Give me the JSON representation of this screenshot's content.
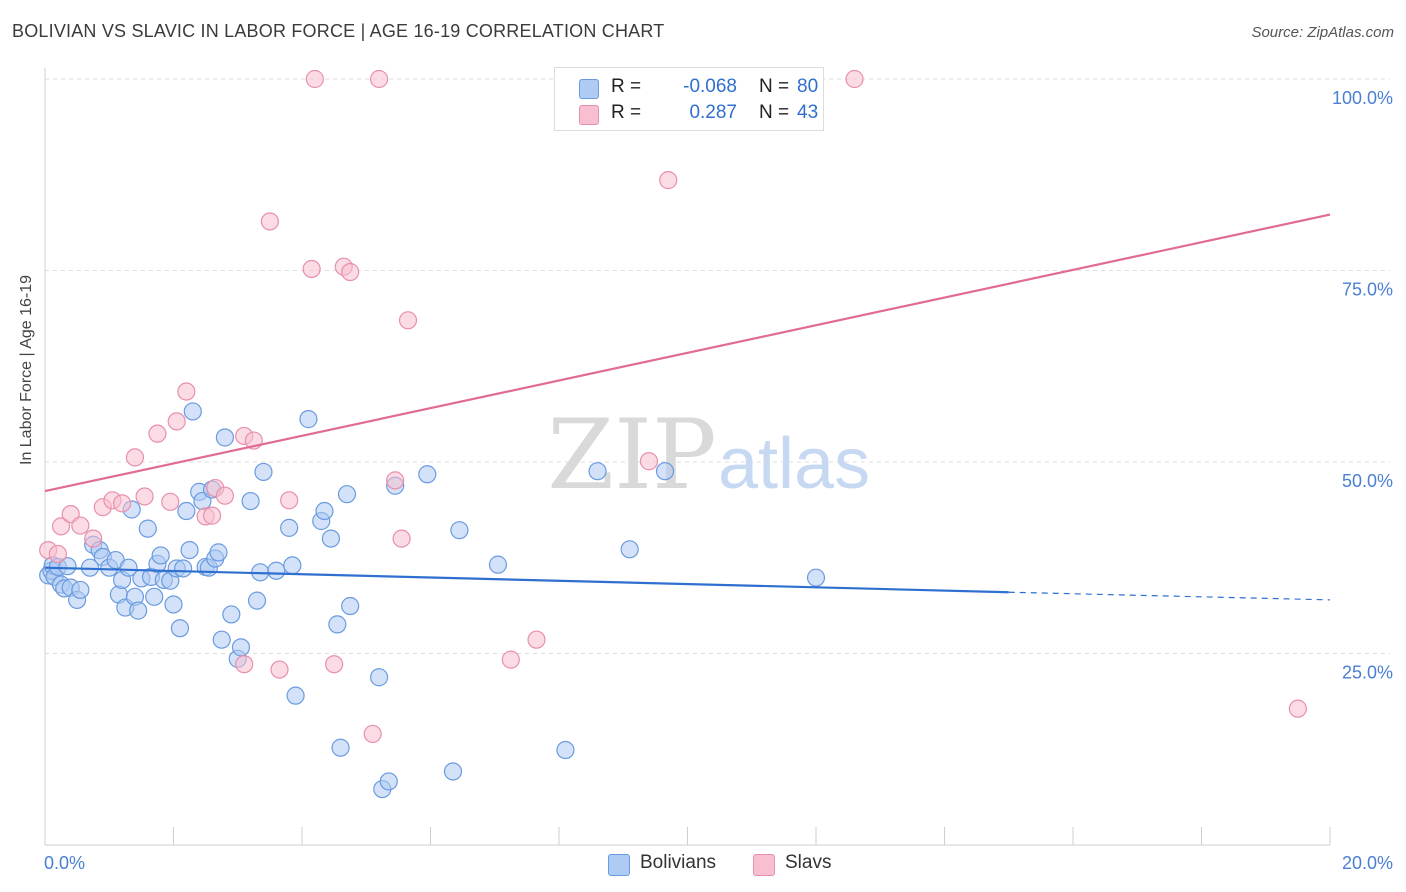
{
  "title": "BOLIVIAN VS SLAVIC IN LABOR FORCE | AGE 16-19 CORRELATION CHART",
  "source": "Source: ZipAtlas.com",
  "watermark": {
    "zip": "ZIP",
    "atlas": "atlas"
  },
  "colors": {
    "bolivians_fill": "#aecbf3",
    "bolivians_stroke": "#6a9be0",
    "bolivians_line": "#2f6fcf",
    "slavs_fill": "#f7bfd0",
    "slavs_stroke": "#e88fac",
    "slavs_line": "#e06b94",
    "axis_text": "#4a7fd1"
  },
  "stats": [
    {
      "r_label": "R =",
      "r_value": "-0.068",
      "n_label": "N =",
      "n_value": "80"
    },
    {
      "r_label": "R =",
      "r_value": "0.287",
      "n_label": "N =",
      "n_value": "43"
    }
  ],
  "legend": [
    "Bolivians",
    "Slavs"
  ],
  "chart_data": {
    "type": "scatter",
    "title": "BOLIVIAN VS SLAVIC IN LABOR FORCE | AGE 16-19 CORRELATION CHART",
    "xlabel": "",
    "ylabel": "In Labor Force | Age 16-19",
    "xlim": [
      0,
      20
    ],
    "ylim": [
      0,
      100
    ],
    "x_ticks": [
      "0.0%",
      "20.0%"
    ],
    "y_ticks": [
      "25.0%",
      "50.0%",
      "75.0%",
      "100.0%"
    ],
    "grid": "horizontal dashed",
    "legend_position": "bottom-center",
    "series": [
      {
        "name": "Bolivians",
        "r": -0.068,
        "n": 80,
        "trend": {
          "x0": 0,
          "y0": 36.2,
          "x1": 15.0,
          "y1": 33.0,
          "dashed_to_x": 20,
          "dashed_to_y": 32.0
        },
        "points": [
          [
            0.05,
            35.2
          ],
          [
            0.1,
            35.8
          ],
          [
            0.12,
            36.5
          ],
          [
            0.15,
            35.0
          ],
          [
            0.2,
            36.3
          ],
          [
            0.25,
            34.0
          ],
          [
            0.3,
            33.5
          ],
          [
            0.35,
            36.4
          ],
          [
            0.4,
            33.6
          ],
          [
            0.5,
            32.0
          ],
          [
            0.55,
            33.3
          ],
          [
            0.7,
            36.2
          ],
          [
            0.75,
            39.2
          ],
          [
            0.85,
            38.5
          ],
          [
            0.9,
            37.6
          ],
          [
            1.0,
            36.2
          ],
          [
            1.1,
            37.2
          ],
          [
            1.15,
            32.7
          ],
          [
            1.2,
            34.6
          ],
          [
            1.25,
            31.0
          ],
          [
            1.3,
            36.2
          ],
          [
            1.35,
            43.8
          ],
          [
            1.4,
            32.4
          ],
          [
            1.45,
            30.6
          ],
          [
            1.5,
            34.8
          ],
          [
            1.6,
            41.3
          ],
          [
            1.65,
            35.0
          ],
          [
            1.7,
            32.4
          ],
          [
            1.75,
            36.7
          ],
          [
            1.8,
            37.8
          ],
          [
            1.85,
            34.6
          ],
          [
            1.95,
            34.5
          ],
          [
            2.0,
            31.4
          ],
          [
            2.05,
            36.1
          ],
          [
            2.1,
            28.3
          ],
          [
            2.15,
            36.1
          ],
          [
            2.2,
            43.6
          ],
          [
            2.25,
            38.5
          ],
          [
            2.3,
            56.6
          ],
          [
            2.4,
            46.1
          ],
          [
            2.45,
            44.9
          ],
          [
            2.5,
            36.3
          ],
          [
            2.55,
            36.2
          ],
          [
            2.6,
            46.4
          ],
          [
            2.65,
            37.4
          ],
          [
            2.7,
            38.2
          ],
          [
            2.75,
            26.8
          ],
          [
            2.8,
            53.2
          ],
          [
            2.9,
            30.1
          ],
          [
            3.0,
            24.3
          ],
          [
            3.05,
            25.8
          ],
          [
            3.2,
            44.9
          ],
          [
            3.3,
            31.9
          ],
          [
            3.35,
            35.6
          ],
          [
            3.4,
            48.7
          ],
          [
            3.6,
            35.8
          ],
          [
            3.8,
            41.4
          ],
          [
            3.85,
            36.5
          ],
          [
            3.9,
            19.5
          ],
          [
            4.1,
            55.6
          ],
          [
            4.3,
            42.3
          ],
          [
            4.35,
            43.6
          ],
          [
            4.45,
            40.0
          ],
          [
            4.55,
            28.8
          ],
          [
            4.6,
            12.7
          ],
          [
            4.7,
            45.8
          ],
          [
            4.75,
            31.2
          ],
          [
            5.2,
            21.9
          ],
          [
            5.25,
            7.3
          ],
          [
            5.35,
            8.3
          ],
          [
            5.45,
            46.9
          ],
          [
            5.95,
            48.4
          ],
          [
            6.35,
            9.6
          ],
          [
            6.45,
            41.1
          ],
          [
            7.05,
            36.6
          ],
          [
            8.1,
            12.4
          ],
          [
            8.6,
            48.8
          ],
          [
            9.1,
            38.6
          ],
          [
            9.65,
            48.8
          ],
          [
            12.0,
            34.9
          ]
        ]
      },
      {
        "name": "Slavs",
        "r": 0.287,
        "n": 43,
        "trend": {
          "x0": 0,
          "y0": 46.2,
          "x1": 20,
          "y1": 82.3
        },
        "points": [
          [
            0.05,
            38.5
          ],
          [
            0.2,
            38.0
          ],
          [
            0.25,
            41.6
          ],
          [
            0.4,
            43.2
          ],
          [
            0.55,
            41.7
          ],
          [
            0.75,
            40.0
          ],
          [
            0.9,
            44.1
          ],
          [
            1.05,
            45.0
          ],
          [
            1.2,
            44.6
          ],
          [
            1.4,
            50.6
          ],
          [
            1.55,
            45.5
          ],
          [
            1.75,
            53.7
          ],
          [
            1.95,
            44.8
          ],
          [
            2.05,
            55.3
          ],
          [
            2.2,
            59.2
          ],
          [
            2.5,
            42.9
          ],
          [
            2.6,
            43.0
          ],
          [
            2.65,
            46.6
          ],
          [
            2.8,
            45.6
          ],
          [
            3.1,
            23.6
          ],
          [
            3.1,
            53.4
          ],
          [
            3.25,
            52.8
          ],
          [
            3.5,
            81.4
          ],
          [
            3.65,
            22.9
          ],
          [
            3.8,
            45.0
          ],
          [
            4.15,
            75.2
          ],
          [
            4.2,
            100.0
          ],
          [
            4.5,
            23.6
          ],
          [
            4.65,
            75.5
          ],
          [
            4.75,
            74.8
          ],
          [
            5.1,
            14.5
          ],
          [
            5.2,
            100.0
          ],
          [
            5.45,
            47.6
          ],
          [
            5.55,
            40.0
          ],
          [
            5.65,
            68.5
          ],
          [
            7.25,
            24.2
          ],
          [
            7.65,
            26.8
          ],
          [
            9.4,
            50.1
          ],
          [
            9.7,
            86.8
          ],
          [
            10.7,
            100.0
          ],
          [
            11.0,
            100.0
          ],
          [
            12.6,
            100.0
          ],
          [
            19.5,
            17.8
          ]
        ]
      }
    ]
  }
}
